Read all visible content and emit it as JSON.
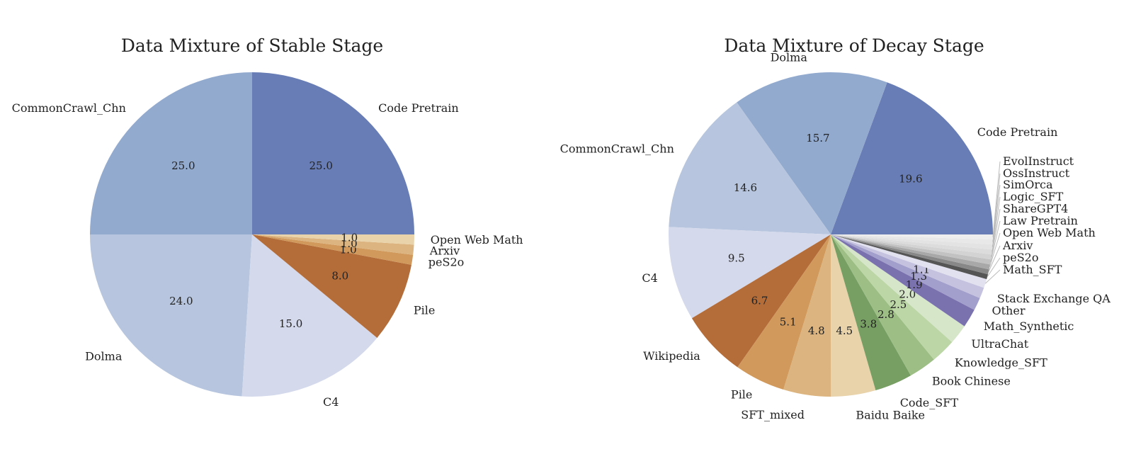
{
  "chart_data": [
    {
      "type": "pie",
      "title": "Data Mixture of Stable Stage",
      "start_angle_deg": 0,
      "direction": "counterclockwise",
      "slices": [
        {
          "label": "Code Pretrain",
          "value": 25.0,
          "display": "25.0",
          "color": "#687db5"
        },
        {
          "label": "CommonCrawl_Chn",
          "value": 25.0,
          "display": "25.0",
          "color": "#93aacf"
        },
        {
          "label": "Dolma",
          "value": 24.0,
          "display": "24.0",
          "color": "#b7c6de"
        },
        {
          "label": "C4",
          "value": 15.0,
          "display": "15.0",
          "color": "#d4d9eb"
        },
        {
          "label": "Pile",
          "value": 8.0,
          "display": "8.0",
          "color": "#b46c39"
        },
        {
          "label": "peS2o",
          "value": 1.0,
          "display": "1.0",
          "color": "#d19a5c"
        },
        {
          "label": "Arxiv",
          "value": 1.0,
          "display": "1.0",
          "color": "#dcb47f"
        },
        {
          "label": "Open Web Math",
          "value": 1.0,
          "display": "1.0",
          "color": "#e8d3ab"
        }
      ]
    },
    {
      "type": "pie",
      "title": "Data Mixture of Decay Stage",
      "start_angle_deg": 0,
      "direction": "counterclockwise",
      "slices": [
        {
          "label": "Code Pretrain",
          "value": 19.6,
          "display": "19.6",
          "color": "#687db5"
        },
        {
          "label": "Dolma",
          "value": 15.7,
          "display": "15.7",
          "color": "#93aacf"
        },
        {
          "label": "CommonCrawl_Chn",
          "value": 14.6,
          "display": "14.6",
          "color": "#b7c6de"
        },
        {
          "label": "C4",
          "value": 9.5,
          "display": "9.5",
          "color": "#d4d9eb"
        },
        {
          "label": "Wikipedia",
          "value": 6.7,
          "display": "6.7",
          "color": "#b46c39"
        },
        {
          "label": "Pile",
          "value": 5.1,
          "display": "5.1",
          "color": "#d19a5c"
        },
        {
          "label": "SFT_mixed",
          "value": 4.8,
          "display": "4.8",
          "color": "#dcb47f"
        },
        {
          "label": "Baidu Baike",
          "value": 4.5,
          "display": "4.5",
          "color": "#e8d3ab"
        },
        {
          "label": "Code_SFT",
          "value": 3.8,
          "display": "3.8",
          "color": "#779e63"
        },
        {
          "label": "Book Chinese",
          "value": 2.8,
          "display": "2.8",
          "color": "#9dbf85"
        },
        {
          "label": "Knowledge_SFT",
          "value": 2.5,
          "display": "2.5",
          "color": "#bcd6a6"
        },
        {
          "label": "UltraChat",
          "value": 2.0,
          "display": "2.0",
          "color": "#d6e6c9"
        },
        {
          "label": "Math_Synthetic",
          "value": 1.9,
          "display": "1.9",
          "color": "#7a71af"
        },
        {
          "label": "Other",
          "value": 1.3,
          "display": "1.3",
          "color": "#a39fcc"
        },
        {
          "label": "Stack Exchange QA",
          "value": 1.1,
          "display": "1.1",
          "color": "#c5c2e0"
        },
        {
          "label": "Math_SFT",
          "value": 0.9,
          "display": "",
          "color": "#e2e1f0"
        },
        {
          "label": "peS2o",
          "value": 0.5,
          "display": "",
          "color": "#555555"
        },
        {
          "label": "Arxiv",
          "value": 0.5,
          "display": "",
          "color": "#888888"
        },
        {
          "label": "Open Web Math",
          "value": 0.5,
          "display": "",
          "color": "#a8a8a8"
        },
        {
          "label": "Law Pretrain",
          "value": 0.5,
          "display": "",
          "color": "#c2c2c2"
        },
        {
          "label": "ShareGPT4",
          "value": 0.5,
          "display": "",
          "color": "#d3d3d3"
        },
        {
          "label": "Logic_SFT",
          "value": 0.5,
          "display": "",
          "color": "#dcdcdc"
        },
        {
          "label": "SimOrca",
          "value": 0.5,
          "display": "",
          "color": "#e3e3e3"
        },
        {
          "label": "OssInstruct",
          "value": 0.5,
          "display": "",
          "color": "#e8e8e8"
        },
        {
          "label": "EvolInstruct",
          "value": 0.5,
          "display": "",
          "color": "#eeeeee"
        }
      ]
    }
  ]
}
